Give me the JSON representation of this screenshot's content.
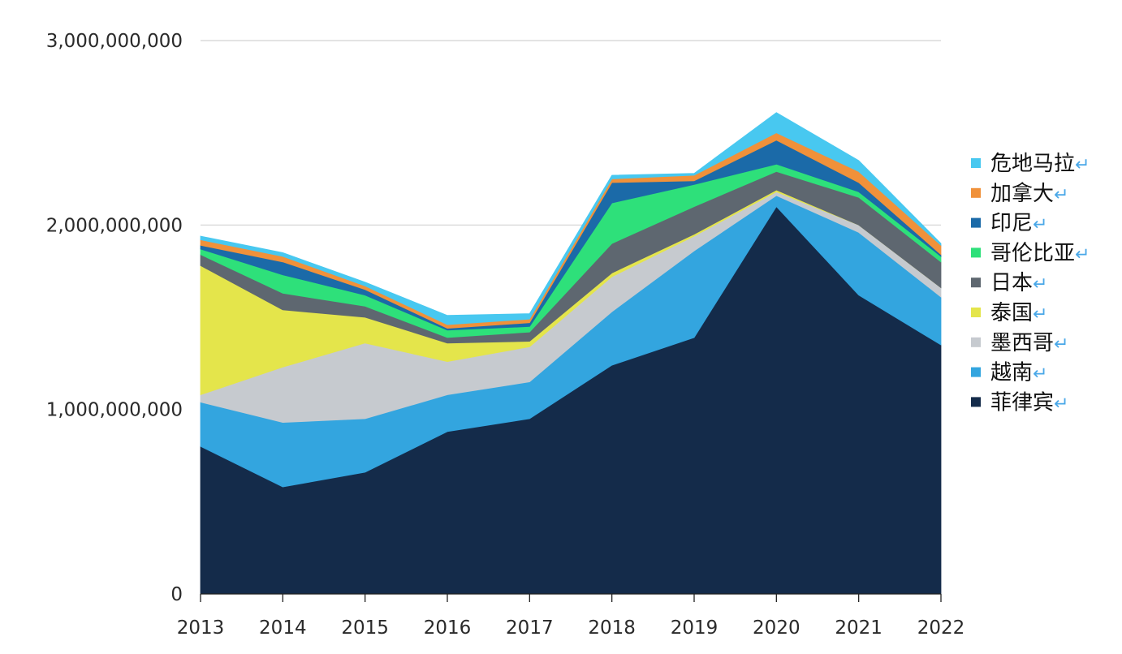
{
  "chart_data": {
    "type": "area",
    "stacked": true,
    "title": "",
    "xlabel": "",
    "ylabel": "",
    "x": [
      "2013",
      "2014",
      "2015",
      "2016",
      "2017",
      "2018",
      "2019",
      "2020",
      "2021",
      "2022"
    ],
    "ylim": [
      0,
      3000000000
    ],
    "yticks": [
      {
        "value": 0,
        "label": "0"
      },
      {
        "value": 1000000000,
        "label": "1,000,000,000"
      },
      {
        "value": 2000000000,
        "label": "2,000,000,000"
      },
      {
        "value": 3000000000,
        "label": "3,000,000,000"
      }
    ],
    "grid": true,
    "legend_position": "right",
    "legend_suffix": "↵",
    "series": [
      {
        "name": "菲律宾",
        "color": "#142b4a",
        "values": [
          800000000,
          580000000,
          660000000,
          880000000,
          950000000,
          1240000000,
          1390000000,
          2100000000,
          1620000000,
          1350000000
        ]
      },
      {
        "name": "越南",
        "color": "#33a5df",
        "values": [
          240000000,
          350000000,
          290000000,
          200000000,
          200000000,
          290000000,
          470000000,
          60000000,
          340000000,
          260000000
        ]
      },
      {
        "name": "墨西哥",
        "color": "#c6cacf",
        "values": [
          40000000,
          300000000,
          410000000,
          180000000,
          190000000,
          190000000,
          80000000,
          20000000,
          40000000,
          50000000
        ]
      },
      {
        "name": "泰国",
        "color": "#e4e54b",
        "values": [
          700000000,
          310000000,
          140000000,
          100000000,
          30000000,
          20000000,
          10000000,
          10000000,
          0,
          0
        ]
      },
      {
        "name": "日本",
        "color": "#5e6770",
        "values": [
          60000000,
          90000000,
          60000000,
          30000000,
          50000000,
          160000000,
          150000000,
          100000000,
          150000000,
          140000000
        ]
      },
      {
        "name": "哥伦比亚",
        "color": "#2ee07a",
        "values": [
          30000000,
          100000000,
          60000000,
          40000000,
          30000000,
          220000000,
          120000000,
          40000000,
          30000000,
          30000000
        ]
      },
      {
        "name": "印尼",
        "color": "#1b6aa8",
        "values": [
          20000000,
          70000000,
          30000000,
          10000000,
          20000000,
          110000000,
          20000000,
          130000000,
          50000000,
          10000000
        ]
      },
      {
        "name": "加拿大",
        "color": "#f0913a",
        "values": [
          30000000,
          30000000,
          20000000,
          20000000,
          20000000,
          20000000,
          30000000,
          40000000,
          60000000,
          50000000
        ]
      },
      {
        "name": "危地马拉",
        "color": "#48c8f0",
        "values": [
          20000000,
          20000000,
          20000000,
          50000000,
          30000000,
          20000000,
          10000000,
          110000000,
          60000000,
          10000000
        ]
      }
    ]
  }
}
